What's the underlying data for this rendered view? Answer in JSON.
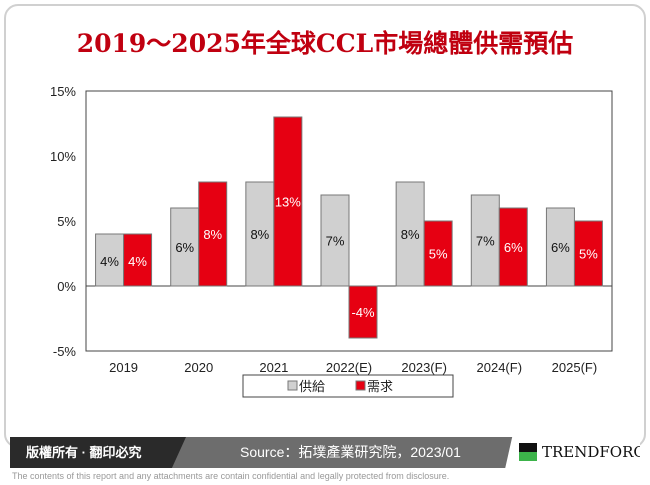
{
  "title": "2019～2025年全球CCL市場總體供需預估",
  "chart_data": {
    "type": "bar",
    "title": "2019～2025年全球CCL市場總體供需預估",
    "categories": [
      "2019",
      "2020",
      "2021",
      "2022(E)",
      "2023(F)",
      "2024(F)",
      "2025(F)"
    ],
    "series": [
      {
        "name": "供給",
        "color": "#d0d0d0",
        "values": [
          4,
          6,
          8,
          7,
          8,
          7,
          6
        ],
        "labels": [
          "4%",
          "6%",
          "8%",
          "7%",
          "8%",
          "7%",
          "6%"
        ]
      },
      {
        "name": "需求",
        "color": "#e60012",
        "values": [
          4,
          8,
          13,
          -4,
          5,
          6,
          5
        ],
        "labels": [
          "4%",
          "8%",
          "13%",
          "-4%",
          "5%",
          "6%",
          "5%"
        ]
      }
    ],
    "ylim": [
      -5,
      15
    ],
    "yticks": [
      15,
      10,
      5,
      0,
      -5
    ],
    "ytick_labels": [
      "15%",
      "10%",
      "5%",
      "0%",
      "-5%"
    ],
    "grid": false,
    "legend": "bottom"
  },
  "footer": {
    "copyright": "版權所有 · 翻印必究",
    "source": "Source：拓墣產業研究院，2023/01",
    "logo": "TRENDFORCE",
    "disclaimer": "The contents of this report and any attachments are contain confidential and legally protected from disclosure."
  }
}
